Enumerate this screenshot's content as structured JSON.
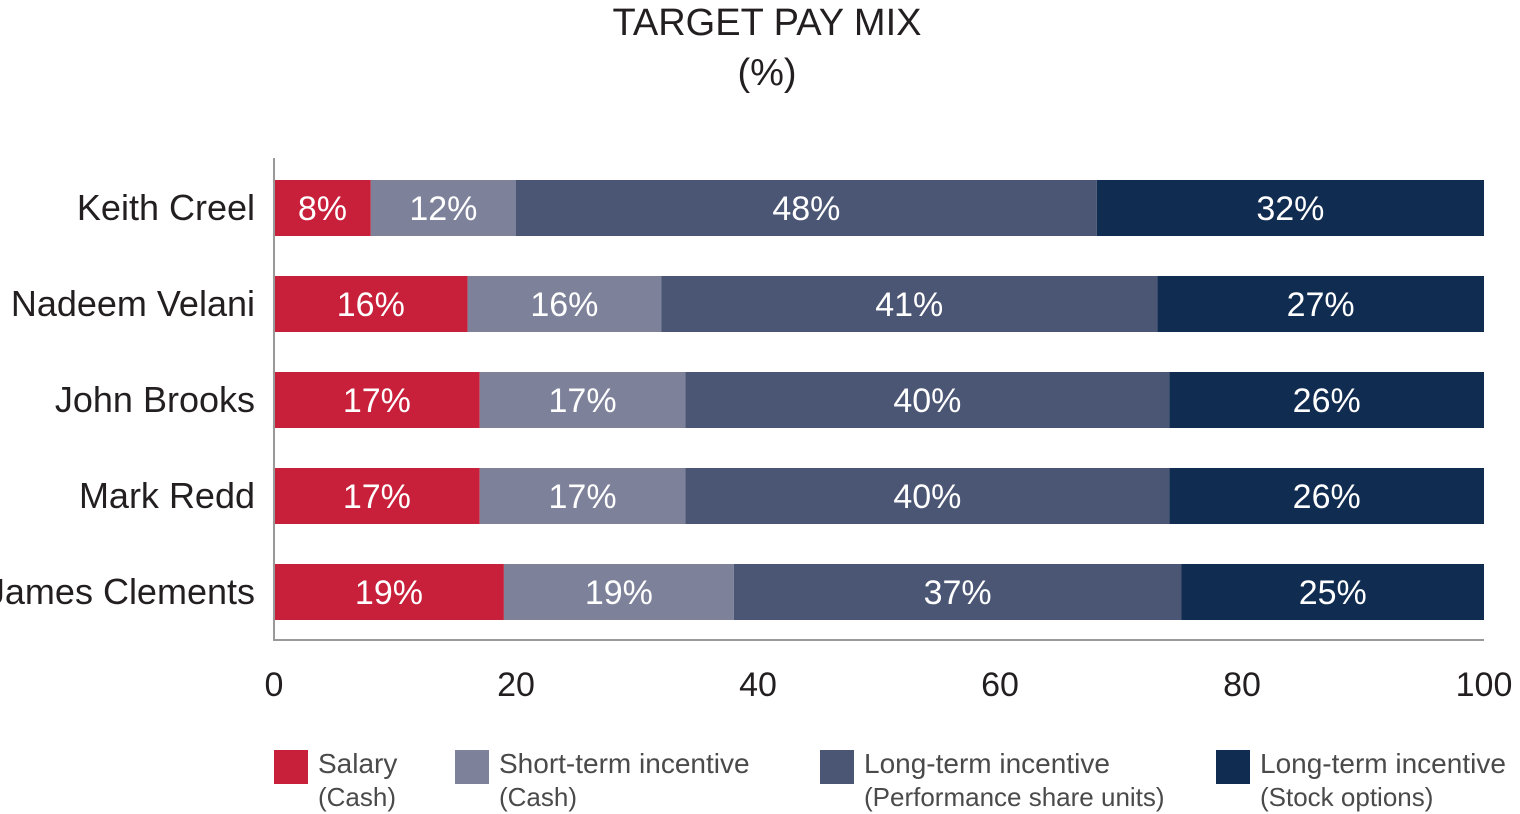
{
  "chart_data": {
    "type": "bar",
    "orientation": "horizontal",
    "stacked": true,
    "title": "TARGET PAY MIX",
    "subtitle": "(%)",
    "categories": [
      "Keith Creel",
      "Nadeem Velani",
      "John Brooks",
      "Mark Redd",
      "James Clements"
    ],
    "series": [
      {
        "name": "Salary",
        "sub": "(Cash)",
        "color": "#c8203a",
        "values": [
          8,
          16,
          17,
          17,
          19
        ]
      },
      {
        "name": "Short-term incentive",
        "sub": "(Cash)",
        "color": "#7d8199",
        "values": [
          12,
          16,
          17,
          17,
          19
        ]
      },
      {
        "name": "Long-term incentive",
        "sub": "(Performance share units)",
        "color": "#4b5674",
        "values": [
          48,
          41,
          40,
          40,
          37
        ]
      },
      {
        "name": "Long-term incentive",
        "sub": "(Stock options)",
        "color": "#112c51",
        "values": [
          32,
          27,
          26,
          26,
          25
        ]
      }
    ],
    "value_suffix": "%",
    "xlim": [
      0,
      100
    ],
    "xticks": [
      0,
      20,
      40,
      60,
      80,
      100
    ],
    "xlabel": "",
    "ylabel": "",
    "grid": false,
    "legend_position": "bottom"
  }
}
